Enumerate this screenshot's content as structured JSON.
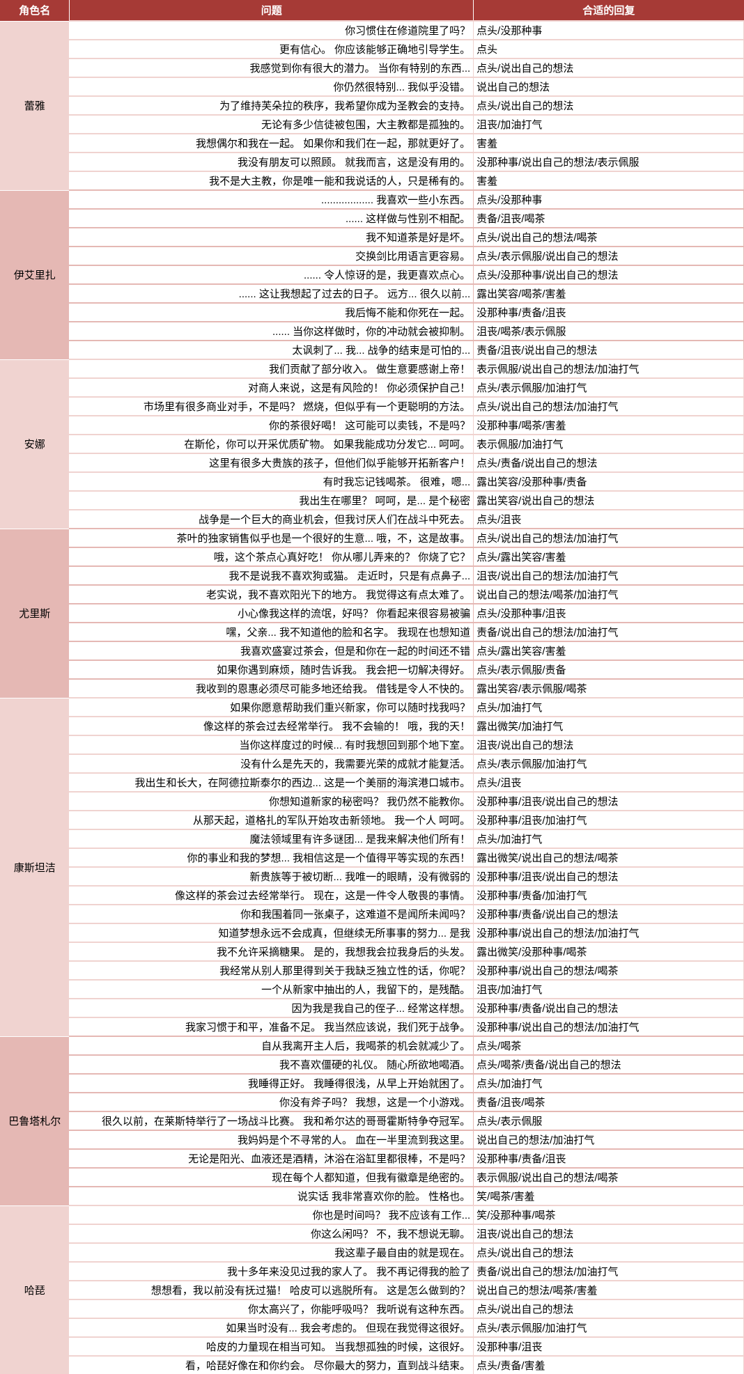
{
  "header": {
    "char": "角色名",
    "question": "问题",
    "answer": "合适的回复"
  },
  "groups": [
    {
      "name": "蕾雅",
      "rows": [
        {
          "q": "你习惯住在修道院里了吗？",
          "a": "点头/没那种事"
        },
        {
          "q": "更有信心。 你应该能够正确地引导学生。",
          "a": "点头"
        },
        {
          "q": "我感觉到你有很大的潜力。 当你有特别的东西...",
          "a": "点头/说出自己的想法"
        },
        {
          "q": "你仍然很特别... 我似乎没错。",
          "a": "说出自己的想法"
        },
        {
          "q": "为了维持芙朵拉的秩序，我希望你成为圣教会的支持。",
          "a": "点头/说出自己的想法"
        },
        {
          "q": "无论有多少信徒被包围，大主教都是孤独的。",
          "a": "沮丧/加油打气"
        },
        {
          "q": "我想偶尔和我在一起。 如果你和我们在一起，那就更好了。",
          "a": "害羞"
        },
        {
          "q": "我没有朋友可以照顾。 就我而言，这是没有用的。",
          "a": "没那种事/说出自己的想法/表示佩服"
        },
        {
          "q": "我不是大主教，你是唯一能和我说话的人，只是稀有的。",
          "a": "害羞"
        }
      ]
    },
    {
      "name": "伊艾里扎",
      "rows": [
        {
          "q": ".................. 我喜欢一些小东西。",
          "a": "点头/没那种事"
        },
        {
          "q": "...... 这样做与性别不相配。",
          "a": "责备/沮丧/喝茶"
        },
        {
          "q": "我不知道茶是好是坏。",
          "a": "点头/说出自己的想法/喝茶"
        },
        {
          "q": "交换剑比用语言更容易。",
          "a": "点头/表示佩服/说出自己的想法"
        },
        {
          "q": "...... 令人惊讶的是，我更喜欢点心。",
          "a": "点头/没那种事/说出自己的想法"
        },
        {
          "q": "...... 这让我想起了过去的日子。 远方... 很久以前...",
          "a": "露出笑容/喝茶/害羞"
        },
        {
          "q": "我后悔不能和你死在一起。",
          "a": "没那种事/责备/沮丧"
        },
        {
          "q": "...... 当你这样做时，你的冲动就会被抑制。",
          "a": "沮丧/喝茶/表示佩服"
        },
        {
          "q": "太讽刺了... 我... 战争的结束是可怕的...",
          "a": "责备/沮丧/说出自己的想法"
        }
      ]
    },
    {
      "name": "安娜",
      "rows": [
        {
          "q": "我们贡献了部分收入。 做生意要感谢上帝！",
          "a": "表示佩服/说出自己的想法/加油打气"
        },
        {
          "q": "对商人来说，这是有风险的！ 你必须保护自己！",
          "a": "点头/表示佩服/加油打气"
        },
        {
          "q": "市场里有很多商业对手，不是吗？ 燃烧，但似乎有一个更聪明的方法。",
          "a": "点头/说出自己的想法/加油打气"
        },
        {
          "q": "你的茶很好喝！ 这可能可以卖钱，不是吗？",
          "a": "没那种事/喝茶/害羞"
        },
        {
          "q": "在斯伦，你可以开采优质矿物。 如果我能成功分发它... 呵呵。",
          "a": "表示佩服/加油打气"
        },
        {
          "q": "这里有很多大贵族的孩子，但他们似乎能够开拓新客户！",
          "a": "点头/责备/说出自己的想法"
        },
        {
          "q": "有时我忘记钱喝茶。 很难，嗯...",
          "a": "露出笑容/没那种事/责备"
        },
        {
          "q": "我出生在哪里？ 呵呵，是... 是个秘密",
          "a": "露出笑容/说出自己的想法"
        },
        {
          "q": "战争是一个巨大的商业机会，但我讨厌人们在战斗中死去。",
          "a": "点头/沮丧"
        }
      ]
    },
    {
      "name": "尤里斯",
      "rows": [
        {
          "q": "茶叶的独家销售似乎也是一个很好的生意... 哦，不，这是故事。",
          "a": "点头/说出自己的想法/加油打气"
        },
        {
          "q": "哦，这个茶点心真好吃！ 你从哪儿弄来的？ 你烧了它？",
          "a": "点头/露出笑容/害羞"
        },
        {
          "q": "我不是说我不喜欢狗或猫。 走近时，只是有点鼻子...",
          "a": "沮丧/说出自己的想法/加油打气"
        },
        {
          "q": "老实说，我不喜欢阳光下的地方。 我觉得这有点太难了。",
          "a": "说出自己的想法/喝茶/加油打气"
        },
        {
          "q": "小心像我这样的流氓，好吗？ 你看起来很容易被骗",
          "a": "点头/没那种事/沮丧"
        },
        {
          "q": "嘿，父亲... 我不知道他的脸和名字。 我现在也想知道",
          "a": "责备/说出自己的想法/加油打气"
        },
        {
          "q": "我喜欢盛宴过茶会，但是和你在一起的时间还不错",
          "a": "点头/露出笑容/害羞"
        },
        {
          "q": "如果你遇到麻烦，随时告诉我。 我会把一切解决得好。",
          "a": "点头/表示佩服/责备"
        },
        {
          "q": "我收到的恩惠必须尽可能多地还给我。 借钱是令人不快的。",
          "a": "露出笑容/表示佩服/喝茶"
        }
      ]
    },
    {
      "name": "康斯坦洁",
      "rows": [
        {
          "q": "如果你愿意帮助我们重兴新家，你可以随时找我吗？",
          "a": "点头/加油打气"
        },
        {
          "q": "像这样的茶会过去经常举行。 我不会输的！ 哦，我的天！",
          "a": "露出微笑/加油打气"
        },
        {
          "q": "当你这样度过的时候... 有时我想回到那个地下室。",
          "a": "沮丧/说出自己的想法"
        },
        {
          "q": "没有什么是先天的，我需要光荣的成就才能复活。",
          "a": "点头/表示佩服/加油打气"
        },
        {
          "q": "我出生和长大，在阿德拉斯泰尔的西边... 这是一个美丽的海滨港口城市。",
          "a": "点头/沮丧"
        },
        {
          "q": "你想知道新家的秘密吗？ 我仍然不能教你。",
          "a": "没那种事/沮丧/说出自己的想法"
        },
        {
          "q": "从那天起，道格扎的军队开始攻击新领地。 我一个人 呵呵。",
          "a": "没那种事/沮丧/加油打气"
        },
        {
          "q": "魔法领域里有许多谜团... 是我来解决他们所有！",
          "a": "点头/加油打气"
        },
        {
          "q": "你的事业和我的梦想... 我相信这是一个值得平等实现的东西！",
          "a": "露出微笑/说出自己的想法/喝茶"
        },
        {
          "q": "新贵族等于被切断... 我唯一的眼睛，没有微弱的",
          "a": "没那种事/沮丧/说出自己的想法"
        },
        {
          "q": "像这样的茶会过去经常举行。 现在，这是一件令人敬畏的事情。",
          "a": "没那种事/责备/加油打气"
        },
        {
          "q": "你和我围着同一张桌子，这难道不是闻所未闻吗？",
          "a": "没那种事/责备/说出自己的想法"
        },
        {
          "q": "知道梦想永远不会成真，但继续无所事事的努力... 是我",
          "a": "没那种事/说出自己的想法/加油打气"
        },
        {
          "q": "我不允许采摘糖果。 是的，我想我会拉我身后的头发。",
          "a": "露出微笑/没那种事/喝茶"
        },
        {
          "q": "我经常从别人那里得到关于我缺乏独立性的话，你呢？",
          "a": "没那种事/说出自己的想法/喝茶"
        },
        {
          "q": "一个从新家中抽出的人，我留下的，是残酷。",
          "a": "沮丧/加油打气"
        },
        {
          "q": "因为我是我自己的侄子... 经常这样想。",
          "a": "没那种事/责备/说出自己的想法"
        },
        {
          "q": "我家习惯于和平，准备不足。 我当然应该说，我们死于战争。",
          "a": "没那种事/说出自己的想法/加油打气"
        }
      ]
    },
    {
      "name": "巴鲁塔札尔",
      "rows": [
        {
          "q": "自从我离开主人后，我喝茶的机会就减少了。",
          "a": "点头/喝茶"
        },
        {
          "q": "我不喜欢僵硬的礼仪。 随心所欲地喝酒。",
          "a": "点头/喝茶/责备/说出自己的想法"
        },
        {
          "q": "我睡得正好。 我睡得很浅，从早上开始就困了。",
          "a": "点头/加油打气"
        },
        {
          "q": "你没有斧子吗？ 我想，这是一个小游戏。",
          "a": "责备/沮丧/喝茶"
        },
        {
          "q": "很久以前，在莱斯特举行了一场战斗比赛。 我和希尔达的哥哥霍斯特争夺冠军。",
          "a": "点头/表示佩服"
        },
        {
          "q": "我妈妈是个不寻常的人。 血在一半里流到我这里。",
          "a": "说出自己的想法/加油打气"
        },
        {
          "q": "无论是阳光、血液还是酒精，沐浴在浴缸里都很棒，不是吗？",
          "a": "没那种事/责备/沮丧"
        },
        {
          "q": "现在每个人都知道，但我有徽章是绝密的。",
          "a": "表示佩服/说出自己的想法/喝茶"
        },
        {
          "q": "说实话 我非常喜欢你的脸。 性格也。",
          "a": "笑/喝茶/害羞"
        }
      ]
    },
    {
      "name": "哈琵",
      "rows": [
        {
          "q": "你也是时间吗？ 我不应该有工作...",
          "a": "笑/没那种事/喝茶"
        },
        {
          "q": "你这么闲吗？ 不，我不想说无聊。",
          "a": "沮丧/说出自己的想法"
        },
        {
          "q": "我这辈子最自由的就是现在。",
          "a": "点头/说出自己的想法"
        },
        {
          "q": "我十多年来没见过我的家人了。 我不再记得我的脸了",
          "a": "责备/说出自己的想法/加油打气"
        },
        {
          "q": "想想看，我以前没有抚过猫！ 哈皮可以逃脱所有。 这是怎么做到的？",
          "a": "说出自己的想法/喝茶/害羞"
        },
        {
          "q": "你太高兴了，你能呼吸吗？ 我听说有这种东西。",
          "a": "点头/说出自己的想法"
        },
        {
          "q": "如果当时没有... 我会考虑的。 但现在我觉得这很好。",
          "a": "点头/表示佩服/加油打气"
        },
        {
          "q": "哈皮的力量现在相当可知。 当我想孤独的时候，这很好。",
          "a": "没那种事/沮丧"
        },
        {
          "q": "看，哈琵好像在和你约会。 尽你最大的努力，直到战斗结束。",
          "a": "点头/责备/害羞"
        }
      ]
    }
  ]
}
